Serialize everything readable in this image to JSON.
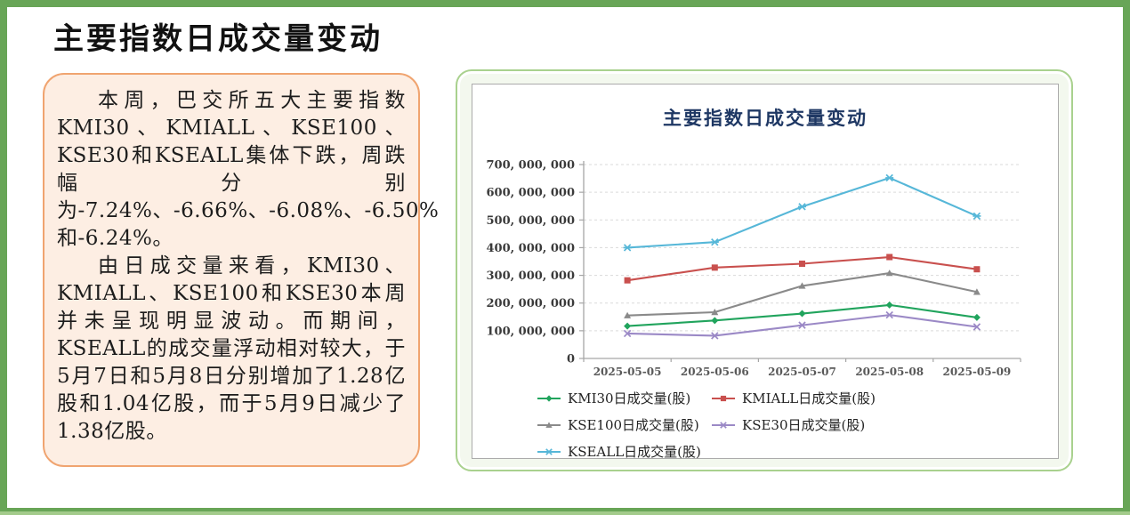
{
  "page": {
    "title": "主要指数日成交量变动"
  },
  "summary_panel": {
    "paragraphs": [
      "本周，巴交所五大主要指数KMI30、KMIALL、KSE100、KSE30和KSEALL集体下跌，周跌幅分别为-7.24%、-6.66%、-6.08%、-6.50%和-6.24%。",
      "由日成交量来看，KMI30、KMIALL、KSE100和KSE30本周并未呈现明显波动。而期间，KSEALL的成交量浮动相对较大，于5月7日和5月8日分别增加了1.28亿股和1.04亿股，而于5月9日减少了1.38亿股。"
    ]
  },
  "chart_data": {
    "type": "line",
    "title": "主要指数日成交量变动",
    "title_color": "#1f3864",
    "categories": [
      "2025-05-05",
      "2025-05-06",
      "2025-05-07",
      "2025-05-08",
      "2025-05-09"
    ],
    "series": [
      {
        "name": "KMI30日成交量(股)",
        "color": "#21a45d",
        "marker": "diamond",
        "values": [
          117000000,
          137000000,
          162000000,
          193000000,
          148000000
        ]
      },
      {
        "name": "KMIALL日成交量(股)",
        "color": "#c9504e",
        "marker": "square",
        "values": [
          282000000,
          328000000,
          342000000,
          366000000,
          322000000
        ]
      },
      {
        "name": "KSE100日成交量(股)",
        "color": "#8a8a8a",
        "marker": "triangle",
        "values": [
          155000000,
          167000000,
          262000000,
          308000000,
          240000000
        ]
      },
      {
        "name": "KSE30日成交量(股)",
        "color": "#9b89c6",
        "marker": "x",
        "values": [
          90000000,
          82000000,
          120000000,
          157000000,
          114000000
        ]
      },
      {
        "name": "KSEALL日成交量(股)",
        "color": "#56b7d8",
        "marker": "asterisk",
        "values": [
          400000000,
          420000000,
          548000000,
          652000000,
          514000000
        ]
      }
    ],
    "ylim": [
      0,
      700000000
    ],
    "y_tick_step": 100000000,
    "y_tick_labels": [
      "0",
      "100, 000, 000",
      "200, 000, 000",
      "300, 000, 000",
      "400, 000, 000",
      "500, 000, 000",
      "600, 000, 000",
      "700, 000, 000"
    ],
    "grid": "horizontal-dashed",
    "legend_position": "bottom"
  },
  "theme": {
    "outer_frame_green": "#68a557",
    "outer_frame_accent": "#a3cb8b",
    "panel_background": "#fdeee3",
    "panel_border_orange": "#f0a470",
    "chart_card_border_green": "#a9d18e",
    "chart_inner_border_gray": "#ababab",
    "axis_color": "#a6a6a6",
    "grid_color": "#d9d9d9",
    "y_tick_text": "#3a3a3a",
    "x_tick_text": "#595959"
  }
}
